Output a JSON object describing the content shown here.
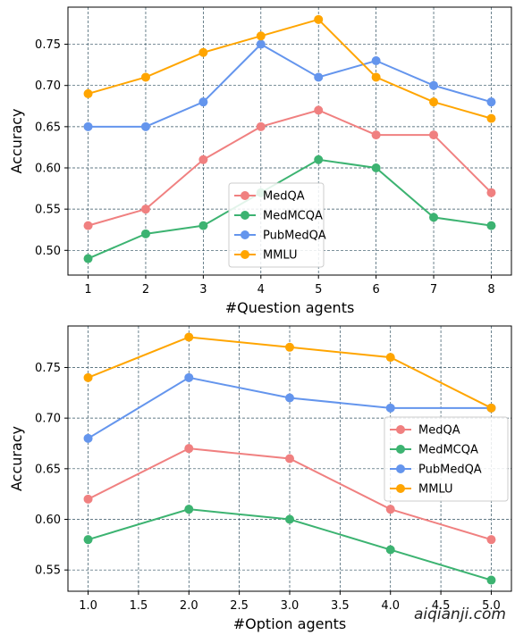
{
  "watermark": "aiqianji.com",
  "chart_data": [
    {
      "type": "line",
      "xlabel": "#Question agents",
      "ylabel": "Accuracy",
      "x": [
        1,
        2,
        3,
        4,
        5,
        6,
        7,
        8
      ],
      "xticks": [
        1,
        2,
        3,
        4,
        5,
        6,
        7,
        8
      ],
      "xtick_labels": [
        "1",
        "2",
        "3",
        "4",
        "5",
        "6",
        "7",
        "8"
      ],
      "xlim": [
        0.65,
        8.35
      ],
      "ylim": [
        0.47,
        0.795
      ],
      "yticks": [
        0.5,
        0.55,
        0.6,
        0.65,
        0.7,
        0.75
      ],
      "ytick_labels": [
        "0.50",
        "0.55",
        "0.60",
        "0.65",
        "0.70",
        "0.75"
      ],
      "grid": true,
      "legend_position": "lower-center",
      "series": [
        {
          "name": "MedQA",
          "color": "#f08080",
          "values": [
            0.53,
            0.55,
            0.61,
            0.65,
            0.67,
            0.64,
            0.64,
            0.57
          ]
        },
        {
          "name": "MedMCQA",
          "color": "#3cb371",
          "values": [
            0.49,
            0.52,
            0.53,
            0.57,
            0.61,
            0.6,
            0.54,
            0.53
          ]
        },
        {
          "name": "PubMedQA",
          "color": "#6495ed",
          "values": [
            0.65,
            0.65,
            0.68,
            0.75,
            0.71,
            0.73,
            0.7,
            0.68
          ]
        },
        {
          "name": "MMLU",
          "color": "#ffa500",
          "values": [
            0.69,
            0.71,
            0.74,
            0.76,
            0.78,
            0.71,
            0.68,
            0.66
          ]
        }
      ]
    },
    {
      "type": "line",
      "xlabel": "#Option agents",
      "ylabel": "Accuracy",
      "x": [
        1.0,
        2.0,
        3.0,
        4.0,
        5.0
      ],
      "xticks": [
        1.0,
        1.5,
        2.0,
        2.5,
        3.0,
        3.5,
        4.0,
        4.5,
        5.0
      ],
      "xtick_labels": [
        "1.0",
        "1.5",
        "2.0",
        "2.5",
        "3.0",
        "3.5",
        "4.0",
        "4.5",
        "5.0"
      ],
      "xlim": [
        0.8,
        5.2
      ],
      "ylim": [
        0.529,
        0.791
      ],
      "yticks": [
        0.55,
        0.6,
        0.65,
        0.7,
        0.75
      ],
      "ytick_labels": [
        "0.55",
        "0.60",
        "0.65",
        "0.70",
        "0.75"
      ],
      "grid": true,
      "legend_position": "center-right",
      "series": [
        {
          "name": "MedQA",
          "color": "#f08080",
          "values": [
            0.62,
            0.67,
            0.66,
            0.61,
            0.58
          ]
        },
        {
          "name": "MedMCQA",
          "color": "#3cb371",
          "values": [
            0.58,
            0.61,
            0.6,
            0.57,
            0.54
          ]
        },
        {
          "name": "PubMedQA",
          "color": "#6495ed",
          "values": [
            0.68,
            0.74,
            0.72,
            0.71,
            0.71
          ]
        },
        {
          "name": "MMLU",
          "color": "#ffa500",
          "values": [
            0.74,
            0.78,
            0.77,
            0.76,
            0.71
          ]
        }
      ]
    }
  ]
}
